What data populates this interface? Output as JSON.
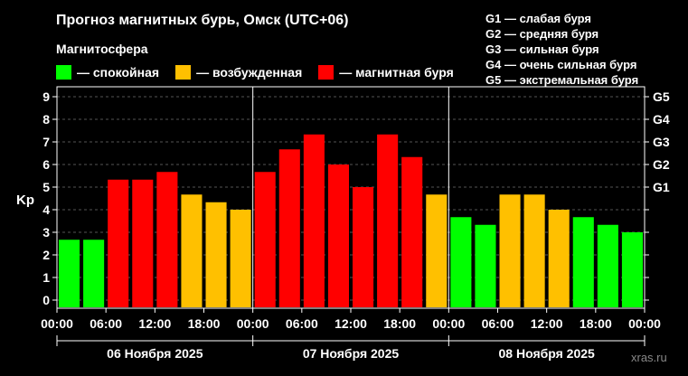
{
  "title": "Прогноз магнитных бурь, Омск (UTC+06)",
  "subtitle": "Магнитосфера",
  "legend": [
    {
      "label": "— спокойная",
      "color": "#00ff00"
    },
    {
      "label": "— возбужденная",
      "color": "#ffc000"
    },
    {
      "label": "— магнитная буря",
      "color": "#ff0000"
    }
  ],
  "g_legend": [
    "G1 — слабая буря",
    "G2 — средняя буря",
    "G3 — сильная буря",
    "G4 — очень сильная буря",
    "G5 — экстремальная буря"
  ],
  "watermark": "xras.ru",
  "chart_data": {
    "type": "bar",
    "ylabel": "Kp",
    "ylim": [
      0,
      9
    ],
    "y_ticks": [
      "0",
      "1",
      "2",
      "3",
      "4",
      "5",
      "6",
      "7",
      "8",
      "9"
    ],
    "right_ticks": [
      {
        "value": 5,
        "label": "G1"
      },
      {
        "value": 6,
        "label": "G2"
      },
      {
        "value": 7,
        "label": "G3"
      },
      {
        "value": 8,
        "label": "G4"
      },
      {
        "value": 9,
        "label": "G5"
      }
    ],
    "x_tick_labels": [
      "00:00",
      "06:00",
      "12:00",
      "18:00",
      "00:00",
      "06:00",
      "12:00",
      "18:00",
      "00:00",
      "06:00",
      "12:00",
      "18:00",
      "00:00"
    ],
    "days": [
      "06 Ноября 2025",
      "07 Ноября 2025",
      "08 Ноября 2025"
    ],
    "colors": {
      "quiet": "#00ff00",
      "active": "#ffc000",
      "storm": "#ff0000"
    },
    "values": [
      2.67,
      2.67,
      5.33,
      5.33,
      5.67,
      4.67,
      4.33,
      4.0,
      5.67,
      6.67,
      7.33,
      6.0,
      5.0,
      7.33,
      6.33,
      4.67,
      3.67,
      3.33,
      4.67,
      4.67,
      4.0,
      3.67,
      3.33,
      3.0
    ],
    "grid": true
  }
}
